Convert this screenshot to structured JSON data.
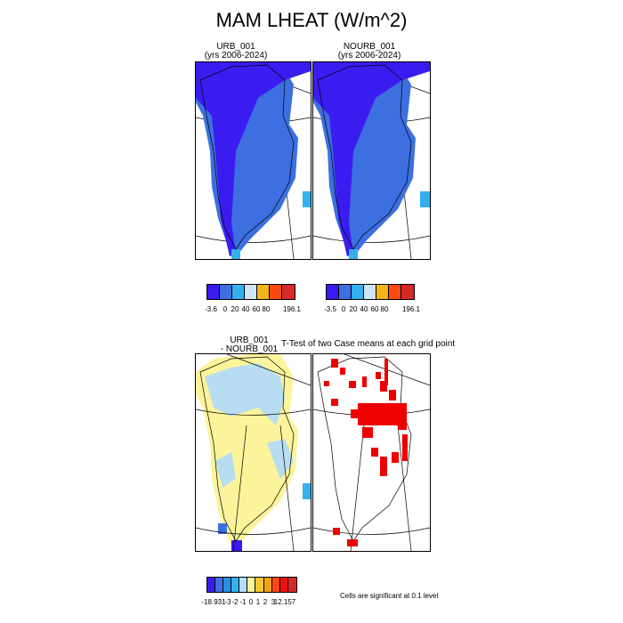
{
  "title": "MAM LHEAT (W/m^2)",
  "panels": {
    "urb": {
      "line1": "URB_001",
      "line2": "(yrs 2006-2024)"
    },
    "nourb": {
      "line1": "NOURB_001",
      "line2": "(yrs 2006-2024)"
    },
    "diff": {
      "line1": "URB_001",
      "line2": "- NOURB_001"
    },
    "ttest": {
      "title": "T-Test of two Case means at each grid point"
    }
  },
  "colorbars": {
    "urb": {
      "labels": [
        "-3.6",
        "0",
        "20",
        "40",
        "60",
        "80",
        "196.1"
      ],
      "colors": [
        "#3a1cf0",
        "#3d6fe0",
        "#34b0ef",
        "#cfe6f7",
        "#f5b417",
        "#fa4a10",
        "#d62a2a"
      ]
    },
    "nourb": {
      "labels": [
        "-3.5",
        "0",
        "20",
        "40",
        "60",
        "80",
        "196.1"
      ],
      "colors": [
        "#3a1cf0",
        "#3d6fe0",
        "#34b0ef",
        "#cfe6f7",
        "#f5b417",
        "#fa4a10",
        "#d62a2a"
      ]
    },
    "diff": {
      "labels": [
        "-18.931",
        "-3",
        "-2",
        "-1",
        "0",
        "1",
        "2",
        "3",
        "12.157"
      ],
      "colors": [
        "#3a1cf0",
        "#3d6fe0",
        "#2b8fe6",
        "#34b0ef",
        "#b8ddf2",
        "#fbf49a",
        "#f5c830",
        "#f5a117",
        "#fa4a10",
        "#ee1010",
        "#d62a2a"
      ]
    }
  },
  "map_colors": {
    "urb_fill": "#3d6fe0",
    "urb_core": "#3a1cf0",
    "nourb_fill": "#3d6fe0",
    "nourb_core": "#3a1cf0",
    "diff_fill": "#fbf49a",
    "diff_light": "#b8ddf2",
    "significant": "#ee0000"
  },
  "note": "Cells are significant at 0.1 level"
}
